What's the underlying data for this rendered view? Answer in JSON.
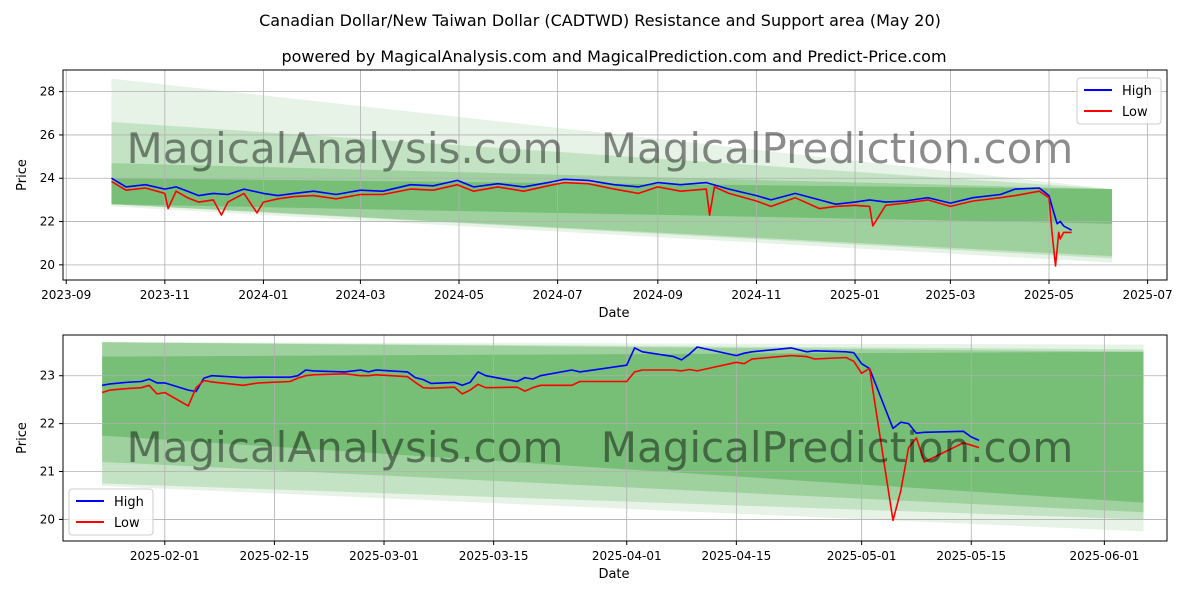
{
  "title": "Canadian Dollar/New Taiwan Dollar (CADTWD) Resistance and Support area (May 20)",
  "subtitle": "powered by MagicalAnalysis.com and MagicalPrediction.com and Predict-Price.com",
  "watermark_left": "MagicalAnalysis.com",
  "watermark_right": "MagicalPrediction.com",
  "colors": {
    "high": "#0000ff",
    "low": "#ff0000",
    "band": "#2e9b2e",
    "grid": "#b0b0b0"
  },
  "chart_data": [
    {
      "type": "line",
      "xlabel": "Date",
      "ylabel": "Price",
      "x_ticks": [
        "2023-09",
        "2023-11",
        "2024-01",
        "2024-03",
        "2024-05",
        "2024-07",
        "2024-09",
        "2024-11",
        "2025-01",
        "2025-03",
        "2025-05",
        "2025-07"
      ],
      "y_ticks": [
        20,
        22,
        24,
        26,
        28
      ],
      "ylim": [
        19.3,
        29.0
      ],
      "legend": {
        "position": "top-right",
        "entries": [
          "High",
          "Low"
        ]
      },
      "bands": [
        {
          "x_start": "2023-09-29",
          "x_end": "2025-06-09",
          "start": [
            22.7,
            28.6
          ],
          "end": [
            20.1,
            23.5
          ],
          "opacity": 0.12
        },
        {
          "x_start": "2023-09-29",
          "x_end": "2025-06-09",
          "start": [
            22.8,
            26.6
          ],
          "end": [
            20.3,
            23.5
          ],
          "opacity": 0.18
        },
        {
          "x_start": "2023-09-29",
          "x_end": "2025-06-09",
          "start": [
            22.8,
            24.7
          ],
          "end": [
            20.4,
            23.5
          ],
          "opacity": 0.25
        },
        {
          "x_start": "2023-09-29",
          "x_end": "2025-06-09",
          "start": [
            22.8,
            24.0
          ],
          "end": [
            21.9,
            23.5
          ],
          "opacity": 0.35
        }
      ],
      "series": [
        {
          "name": "High",
          "x": [
            "2023-09-29",
            "2023-10-08",
            "2023-10-20",
            "2023-11-01",
            "2023-11-08",
            "2023-11-15",
            "2023-11-22",
            "2023-12-01",
            "2023-12-10",
            "2023-12-20",
            "2024-01-01",
            "2024-01-10",
            "2024-01-20",
            "2024-02-01",
            "2024-02-15",
            "2024-03-01",
            "2024-03-15",
            "2024-04-01",
            "2024-04-15",
            "2024-04-30",
            "2024-05-10",
            "2024-05-25",
            "2024-06-10",
            "2024-06-25",
            "2024-07-05",
            "2024-07-20",
            "2024-08-05",
            "2024-08-20",
            "2024-09-01",
            "2024-09-15",
            "2024-10-01",
            "2024-10-15",
            "2024-11-01",
            "2024-11-10",
            "2024-11-25",
            "2024-12-10",
            "2024-12-20",
            "2025-01-01",
            "2025-01-10",
            "2025-01-20",
            "2025-02-01",
            "2025-02-15",
            "2025-03-01",
            "2025-03-15",
            "2025-04-01",
            "2025-04-10",
            "2025-04-25",
            "2025-05-01",
            "2025-05-04",
            "2025-05-06",
            "2025-05-08",
            "2025-05-10",
            "2025-05-15"
          ],
          "values": [
            24.0,
            23.6,
            23.7,
            23.5,
            23.6,
            23.4,
            23.2,
            23.3,
            23.25,
            23.5,
            23.3,
            23.2,
            23.3,
            23.4,
            23.25,
            23.45,
            23.4,
            23.7,
            23.65,
            23.9,
            23.6,
            23.75,
            23.6,
            23.8,
            23.95,
            23.9,
            23.7,
            23.6,
            23.8,
            23.7,
            23.8,
            23.5,
            23.2,
            23.0,
            23.3,
            23.0,
            22.8,
            22.9,
            23.0,
            22.9,
            22.95,
            23.1,
            22.85,
            23.1,
            23.25,
            23.5,
            23.55,
            23.2,
            22.4,
            21.9,
            22.0,
            21.8,
            21.6
          ]
        },
        {
          "name": "Low",
          "x": [
            "2023-09-29",
            "2023-10-08",
            "2023-10-20",
            "2023-11-01",
            "2023-11-03",
            "2023-11-08",
            "2023-11-15",
            "2023-11-22",
            "2023-12-01",
            "2023-12-06",
            "2023-12-10",
            "2023-12-20",
            "2023-12-28",
            "2024-01-01",
            "2024-01-10",
            "2024-01-20",
            "2024-02-01",
            "2024-02-15",
            "2024-03-01",
            "2024-03-15",
            "2024-04-01",
            "2024-04-15",
            "2024-04-30",
            "2024-05-10",
            "2024-05-25",
            "2024-06-10",
            "2024-06-25",
            "2024-07-05",
            "2024-07-20",
            "2024-08-05",
            "2024-08-20",
            "2024-09-01",
            "2024-09-15",
            "2024-10-01",
            "2024-10-03",
            "2024-10-06",
            "2024-10-15",
            "2024-11-01",
            "2024-11-10",
            "2024-11-25",
            "2024-12-10",
            "2024-12-20",
            "2025-01-01",
            "2025-01-10",
            "2025-01-12",
            "2025-01-20",
            "2025-02-01",
            "2025-02-15",
            "2025-03-01",
            "2025-03-15",
            "2025-04-01",
            "2025-04-10",
            "2025-04-25",
            "2025-05-01",
            "2025-05-03",
            "2025-05-05",
            "2025-05-06",
            "2025-05-07",
            "2025-05-08",
            "2025-05-10",
            "2025-05-15"
          ],
          "values": [
            23.85,
            23.45,
            23.55,
            23.3,
            22.6,
            23.4,
            23.1,
            22.9,
            23.0,
            22.3,
            22.9,
            23.3,
            22.4,
            22.9,
            23.05,
            23.15,
            23.2,
            23.05,
            23.25,
            23.25,
            23.5,
            23.45,
            23.7,
            23.4,
            23.6,
            23.4,
            23.65,
            23.8,
            23.75,
            23.5,
            23.3,
            23.6,
            23.4,
            23.5,
            22.3,
            23.6,
            23.3,
            22.95,
            22.7,
            23.1,
            22.6,
            22.7,
            22.75,
            22.7,
            21.8,
            22.75,
            22.85,
            23.0,
            22.7,
            22.95,
            23.1,
            23.2,
            23.4,
            23.1,
            21.4,
            19.95,
            20.7,
            21.5,
            21.2,
            21.5,
            21.5
          ]
        }
      ]
    },
    {
      "type": "line",
      "xlabel": "Date",
      "ylabel": "Price",
      "x_ticks": [
        "2025-02-01",
        "2025-02-15",
        "2025-03-01",
        "2025-03-15",
        "2025-04-01",
        "2025-04-15",
        "2025-05-01",
        "2025-05-15",
        "2025-06-01"
      ],
      "y_ticks": [
        20,
        21,
        22,
        23
      ],
      "ylim": [
        19.55,
        23.85
      ],
      "legend": {
        "position": "bottom-left",
        "entries": [
          "High",
          "Low"
        ]
      },
      "bands": [
        {
          "x_start": "2025-01-24",
          "x_end": "2025-06-06",
          "start": [
            20.7,
            23.7
          ],
          "end": [
            19.75,
            23.65
          ],
          "opacity": 0.12
        },
        {
          "x_start": "2025-01-24",
          "x_end": "2025-06-06",
          "start": [
            20.75,
            23.7
          ],
          "end": [
            20.0,
            23.55
          ],
          "opacity": 0.18
        },
        {
          "x_start": "2025-01-24",
          "x_end": "2025-06-06",
          "start": [
            21.2,
            23.7
          ],
          "end": [
            20.15,
            23.5
          ],
          "opacity": 0.25
        },
        {
          "x_start": "2025-01-24",
          "x_end": "2025-06-06",
          "start": [
            21.75,
            23.4
          ],
          "end": [
            20.35,
            23.5
          ],
          "opacity": 0.35
        }
      ],
      "series": [
        {
          "name": "High",
          "x": [
            "2025-01-24",
            "2025-01-25",
            "2025-01-27",
            "2025-01-29",
            "2025-01-30",
            "2025-01-31",
            "2025-02-01",
            "2025-02-04",
            "2025-02-05",
            "2025-02-06",
            "2025-02-07",
            "2025-02-11",
            "2025-02-13",
            "2025-02-17",
            "2025-02-18",
            "2025-02-19",
            "2025-02-20",
            "2025-02-24",
            "2025-02-26",
            "2025-02-27",
            "2025-02-28",
            "2025-03-04",
            "2025-03-05",
            "2025-03-06",
            "2025-03-07",
            "2025-03-10",
            "2025-03-11",
            "2025-03-12",
            "2025-03-13",
            "2025-03-14",
            "2025-03-18",
            "2025-03-19",
            "2025-03-20",
            "2025-03-21",
            "2025-03-25",
            "2025-03-26",
            "2025-04-01",
            "2025-04-02",
            "2025-04-03",
            "2025-04-07",
            "2025-04-08",
            "2025-04-09",
            "2025-04-10",
            "2025-04-15",
            "2025-04-16",
            "2025-04-17",
            "2025-04-22",
            "2025-04-24",
            "2025-04-25",
            "2025-04-29",
            "2025-04-30",
            "2025-05-01",
            "2025-05-02",
            "2025-05-05",
            "2025-05-06",
            "2025-05-07",
            "2025-05-08",
            "2025-05-09",
            "2025-05-14",
            "2025-05-15",
            "2025-05-16"
          ],
          "values": [
            22.8,
            22.83,
            22.86,
            22.88,
            22.93,
            22.85,
            22.85,
            22.7,
            22.67,
            22.95,
            23.0,
            22.96,
            22.97,
            22.97,
            23.0,
            23.12,
            23.1,
            23.08,
            23.12,
            23.08,
            23.12,
            23.08,
            22.96,
            22.92,
            22.84,
            22.86,
            22.8,
            22.86,
            23.08,
            23.0,
            22.88,
            22.96,
            22.93,
            23.0,
            23.12,
            23.08,
            23.22,
            23.58,
            23.5,
            23.4,
            23.33,
            23.45,
            23.6,
            23.42,
            23.47,
            23.5,
            23.58,
            23.5,
            23.52,
            23.5,
            23.48,
            23.25,
            23.15,
            21.9,
            22.03,
            22.0,
            21.8,
            21.82,
            21.84,
            21.72,
            21.65
          ]
        },
        {
          "name": "Low",
          "x": [
            "2025-01-24",
            "2025-01-25",
            "2025-01-27",
            "2025-01-29",
            "2025-01-30",
            "2025-01-31",
            "2025-02-01",
            "2025-02-04",
            "2025-02-05",
            "2025-02-06",
            "2025-02-07",
            "2025-02-11",
            "2025-02-13",
            "2025-02-17",
            "2025-02-18",
            "2025-02-19",
            "2025-02-20",
            "2025-02-24",
            "2025-02-26",
            "2025-02-27",
            "2025-02-28",
            "2025-03-04",
            "2025-03-05",
            "2025-03-06",
            "2025-03-07",
            "2025-03-10",
            "2025-03-11",
            "2025-03-12",
            "2025-03-13",
            "2025-03-14",
            "2025-03-18",
            "2025-03-19",
            "2025-03-20",
            "2025-03-21",
            "2025-03-25",
            "2025-03-26",
            "2025-04-01",
            "2025-04-02",
            "2025-04-03",
            "2025-04-07",
            "2025-04-08",
            "2025-04-09",
            "2025-04-10",
            "2025-04-15",
            "2025-04-16",
            "2025-04-17",
            "2025-04-22",
            "2025-04-24",
            "2025-04-25",
            "2025-04-29",
            "2025-04-30",
            "2025-05-01",
            "2025-05-02",
            "2025-05-05",
            "2025-05-06",
            "2025-05-07",
            "2025-05-08",
            "2025-05-09",
            "2025-05-14",
            "2025-05-15",
            "2025-05-16"
          ],
          "values": [
            22.65,
            22.7,
            22.73,
            22.75,
            22.8,
            22.62,
            22.65,
            22.37,
            22.75,
            22.9,
            22.87,
            22.8,
            22.85,
            22.88,
            22.95,
            23.0,
            23.02,
            23.04,
            23.0,
            23.0,
            23.02,
            22.98,
            22.86,
            22.75,
            22.74,
            22.76,
            22.62,
            22.7,
            22.82,
            22.75,
            22.76,
            22.68,
            22.75,
            22.8,
            22.8,
            22.88,
            22.88,
            23.08,
            23.12,
            23.12,
            23.1,
            23.13,
            23.1,
            23.28,
            23.25,
            23.35,
            23.42,
            23.4,
            23.35,
            23.38,
            23.3,
            23.05,
            23.15,
            19.98,
            20.6,
            21.5,
            21.7,
            21.2,
            21.6,
            21.55,
            21.5
          ]
        }
      ]
    }
  ]
}
